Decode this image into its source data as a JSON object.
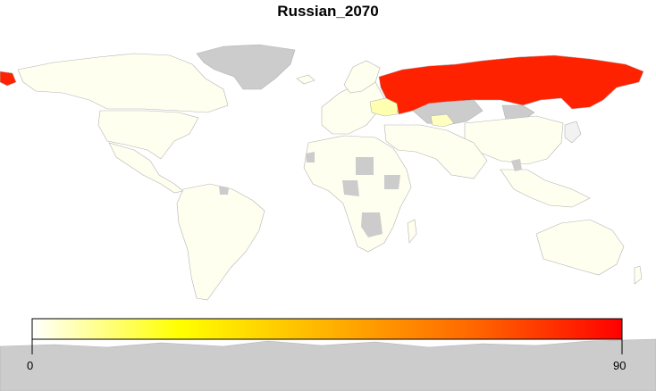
{
  "title": "Russian_2070",
  "legend": {
    "min_label": "0",
    "max_label": "90",
    "gradient_colors": [
      "#fffff5",
      "#ffff00",
      "#ff9a00",
      "#ff0000"
    ]
  },
  "colors": {
    "no_data": "#cccccc",
    "low": "#fffff0",
    "border": "#b3b3b3",
    "russia": "#ff2200",
    "ukraine": "#ffffb0",
    "kazakhstan_no_data": "#cccccc"
  },
  "regions": [
    {
      "name": "Russia",
      "value": 80
    },
    {
      "name": "Ukraine",
      "value": 10
    },
    {
      "name": "Uzbekistan",
      "value": 8
    }
  ]
}
